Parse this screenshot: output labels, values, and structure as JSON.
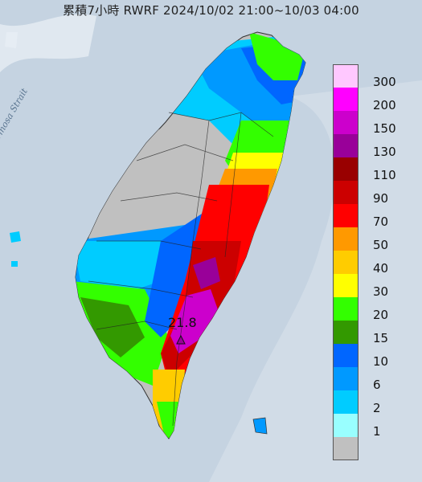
{
  "title": "累積7小時 RWRF 2024/10/02 21:00~10/03 04:00",
  "sea_label": "Formosa Strait",
  "peak_value": "21.8",
  "legend": [
    {
      "label": "300",
      "color": "#ffc8ff"
    },
    {
      "label": "200",
      "color": "#ff00ff"
    },
    {
      "label": "150",
      "color": "#cc00cc"
    },
    {
      "label": "130",
      "color": "#990099"
    },
    {
      "label": "110",
      "color": "#990000"
    },
    {
      "label": "90",
      "color": "#cc0000"
    },
    {
      "label": "70",
      "color": "#ff0000"
    },
    {
      "label": "50",
      "color": "#ff9900"
    },
    {
      "label": "40",
      "color": "#ffcc00"
    },
    {
      "label": "30",
      "color": "#ffff00"
    },
    {
      "label": "20",
      "color": "#33ff00"
    },
    {
      "label": "15",
      "color": "#339900"
    },
    {
      "label": "10",
      "color": "#0066ff"
    },
    {
      "label": "6",
      "color": "#0099ff"
    },
    {
      "label": "2",
      "color": "#00ccff"
    },
    {
      "label": "1",
      "color": "#99ffff"
    },
    {
      "label": "",
      "color": "#c0c0c0"
    }
  ]
}
